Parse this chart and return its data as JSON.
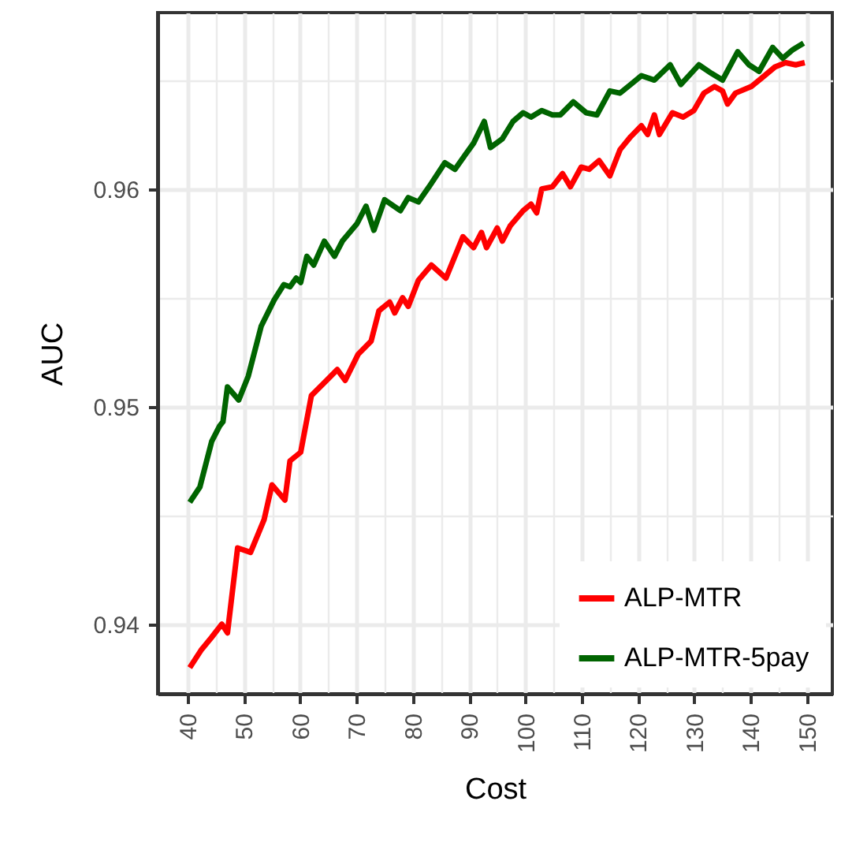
{
  "chart_data": {
    "type": "line",
    "xlabel": "Cost",
    "ylabel": "AUC",
    "xlim": [
      34.7,
      154.5
    ],
    "ylim": [
      0.9368,
      0.9681
    ],
    "xticks": [
      40,
      {
        "value": 45,
        "label": null
      },
      50,
      {
        "value": 55,
        "label": null
      },
      60,
      {
        "value": 65,
        "label": null
      },
      70,
      {
        "value": 75,
        "label": null
      },
      80,
      {
        "value": 85,
        "label": null
      },
      90,
      {
        "value": 95,
        "label": null
      },
      100,
      {
        "value": 105,
        "label": null
      },
      110,
      {
        "value": 115,
        "label": null
      },
      120,
      {
        "value": 125,
        "label": null
      },
      130,
      {
        "value": 135,
        "label": null
      },
      140,
      {
        "value": 145,
        "label": null
      },
      150
    ],
    "yticks": [
      {
        "value": 0.94,
        "label": "0.94"
      },
      {
        "value": 0.945,
        "label": null
      },
      {
        "value": 0.95,
        "label": "0.95"
      },
      {
        "value": 0.955,
        "label": null
      },
      {
        "value": 0.96,
        "label": "0.96"
      },
      {
        "value": 0.965,
        "label": null
      }
    ],
    "grid": true,
    "legend": "bottom right",
    "line_style": "solid",
    "marker": "none",
    "series": [
      {
        "name": "ALP-MTR",
        "color": "#ff0000",
        "x": [
          40.4,
          42.4,
          44.3,
          46.1,
          47.1,
          48.9,
          51.2,
          53.6,
          55.0,
          57.3,
          58.2,
          60.1,
          62.0,
          64.7,
          66.6,
          68.0,
          70.3,
          72.6,
          74.0,
          75.9,
          76.8,
          78.2,
          79.2,
          81.0,
          83.3,
          85.9,
          88.9,
          90.8,
          92.2,
          93.1,
          95.0,
          95.9,
          97.3,
          99.6,
          101.0,
          102.0,
          102.9,
          104.8,
          106.6,
          108.0,
          109.9,
          111.3,
          113.1,
          115.0,
          116.8,
          118.7,
          120.6,
          121.7,
          122.9,
          123.8,
          126.1,
          128.0,
          129.9,
          131.7,
          133.6,
          135.0,
          135.9,
          137.3,
          140.1,
          142.0,
          144.3,
          146.2,
          148.0,
          149.6
        ],
        "values": [
          0.938,
          0.9388,
          0.9394,
          0.94,
          0.9396,
          0.9435,
          0.9433,
          0.9448,
          0.9464,
          0.9457,
          0.9475,
          0.9479,
          0.9505,
          0.9512,
          0.9517,
          0.9512,
          0.9524,
          0.953,
          0.9544,
          0.9548,
          0.9543,
          0.955,
          0.9546,
          0.9558,
          0.9565,
          0.9559,
          0.9578,
          0.9573,
          0.958,
          0.9573,
          0.9582,
          0.9576,
          0.9583,
          0.959,
          0.9593,
          0.9589,
          0.96,
          0.9601,
          0.9607,
          0.9601,
          0.961,
          0.9609,
          0.9613,
          0.9606,
          0.9618,
          0.9624,
          0.9629,
          0.9625,
          0.9634,
          0.9625,
          0.9635,
          0.9633,
          0.9636,
          0.9644,
          0.9647,
          0.9645,
          0.9639,
          0.9644,
          0.9647,
          0.9651,
          0.9656,
          0.9658,
          0.9657,
          0.9658
        ]
      },
      {
        "name": "ALP-MTR-5pay",
        "color": "#006400",
        "x": [
          40.4,
          42.2,
          44.3,
          45.7,
          46.3,
          47.1,
          49.1,
          50.8,
          53.1,
          55.4,
          57.1,
          58.2,
          59.3,
          60.1,
          61.2,
          62.4,
          64.3,
          66.1,
          67.5,
          70.1,
          71.7,
          73.1,
          75.0,
          77.8,
          79.2,
          81.0,
          82.9,
          85.7,
          87.5,
          89.4,
          90.8,
          92.7,
          93.8,
          95.9,
          97.8,
          99.6,
          101.0,
          102.9,
          104.8,
          106.2,
          108.5,
          110.8,
          112.7,
          115.0,
          116.8,
          118.7,
          120.6,
          122.9,
          125.7,
          127.6,
          130.8,
          133.1,
          135.0,
          137.7,
          139.7,
          141.5,
          143.9,
          145.7,
          147.5,
          149.4
        ],
        "values": [
          0.9456,
          0.9463,
          0.9484,
          0.9491,
          0.9493,
          0.9509,
          0.9503,
          0.9514,
          0.9537,
          0.9549,
          0.9556,
          0.9555,
          0.9559,
          0.9557,
          0.9569,
          0.9565,
          0.9576,
          0.9569,
          0.9576,
          0.9584,
          0.9592,
          0.9581,
          0.9595,
          0.959,
          0.9596,
          0.9594,
          0.9601,
          0.9612,
          0.9609,
          0.9616,
          0.9621,
          0.9631,
          0.9619,
          0.9623,
          0.9631,
          0.9635,
          0.9633,
          0.9636,
          0.9634,
          0.9634,
          0.964,
          0.9635,
          0.9634,
          0.9645,
          0.9644,
          0.9648,
          0.9652,
          0.965,
          0.9657,
          0.9648,
          0.9657,
          0.9653,
          0.965,
          0.9663,
          0.9657,
          0.9654,
          0.9665,
          0.966,
          0.9664,
          0.9667
        ]
      }
    ]
  }
}
